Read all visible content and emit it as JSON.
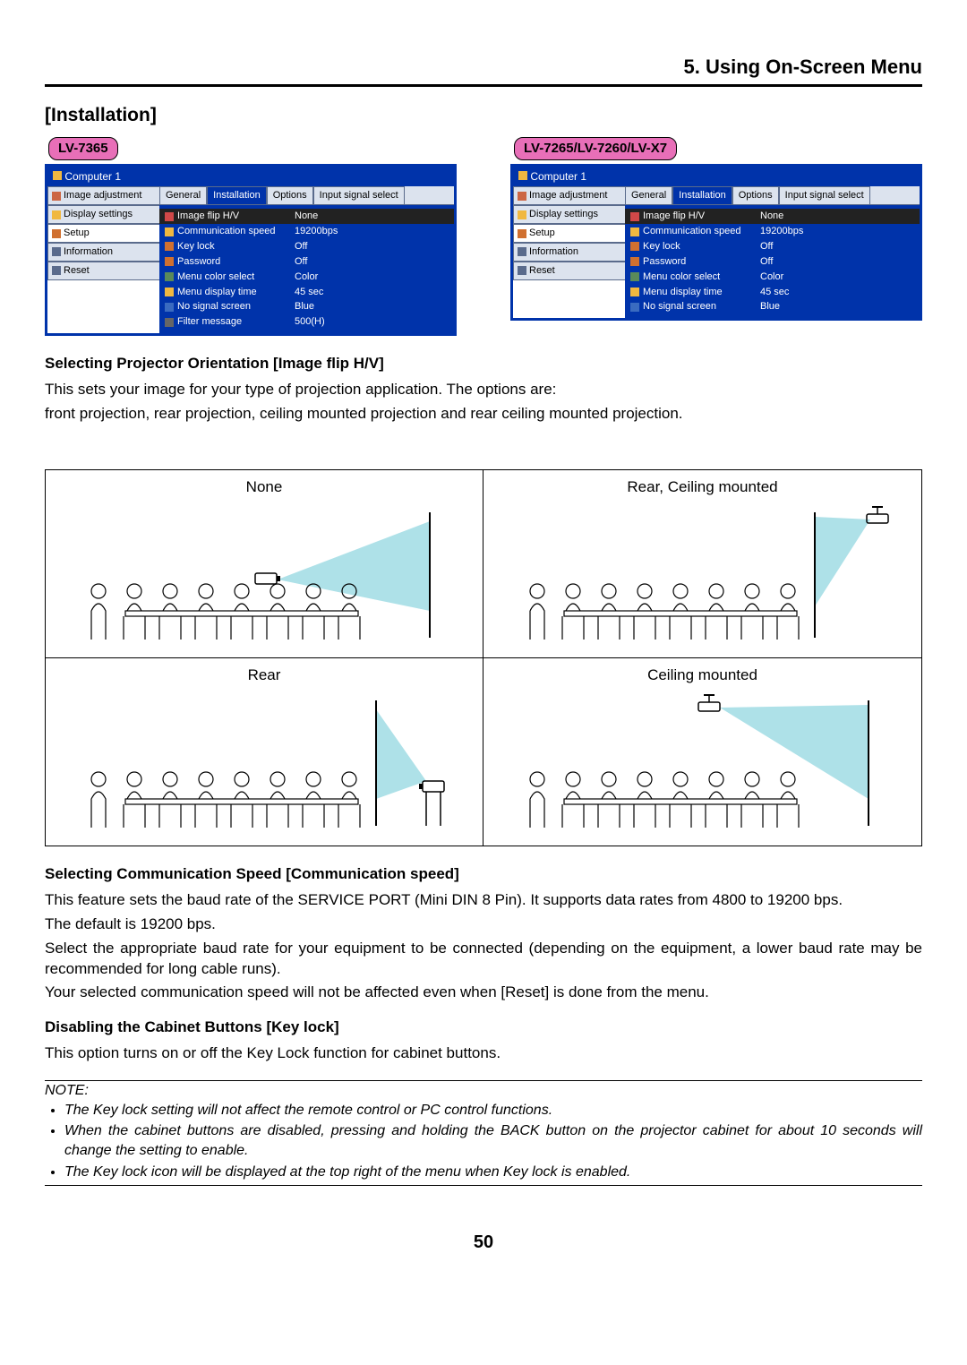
{
  "chapter": "5. Using On-Screen Menu",
  "section": "[Installation]",
  "model_a": {
    "label": "LV-7365",
    "window_title": "Computer 1",
    "side": [
      "Image adjustment",
      "Display settings",
      "Setup",
      "Information",
      "Reset"
    ],
    "tabs": [
      "General",
      "Installation",
      "Options",
      "Input signal select"
    ],
    "active_tab": 1,
    "settings": [
      {
        "label": "Image flip H/V",
        "value": "None",
        "sel": true
      },
      {
        "label": "Communication speed",
        "value": "19200bps",
        "sel": false
      },
      {
        "label": "Key lock",
        "value": "Off",
        "sel": false
      },
      {
        "label": "Password",
        "value": "Off",
        "sel": false
      },
      {
        "label": "Menu color select",
        "value": "Color",
        "sel": false
      },
      {
        "label": "Menu display time",
        "value": "45 sec",
        "sel": false
      },
      {
        "label": "No signal screen",
        "value": "Blue",
        "sel": false
      },
      {
        "label": "Filter message",
        "value": "500(H)",
        "sel": false
      }
    ]
  },
  "model_b": {
    "label": "LV-7265/LV-7260/LV-X7",
    "window_title": "Computer 1",
    "side": [
      "Image adjustment",
      "Display settings",
      "Setup",
      "Information",
      "Reset"
    ],
    "tabs": [
      "General",
      "Installation",
      "Options",
      "Input signal select"
    ],
    "active_tab": 1,
    "settings": [
      {
        "label": "Image flip H/V",
        "value": "None",
        "sel": true
      },
      {
        "label": "Communication speed",
        "value": "19200bps",
        "sel": false
      },
      {
        "label": "Key lock",
        "value": "Off",
        "sel": false
      },
      {
        "label": "Password",
        "value": "Off",
        "sel": false
      },
      {
        "label": "Menu color select",
        "value": "Color",
        "sel": false
      },
      {
        "label": "Menu display time",
        "value": "45 sec",
        "sel": false
      },
      {
        "label": "No signal screen",
        "value": "Blue",
        "sel": false
      }
    ]
  },
  "sub1": {
    "heading": "Selecting Projector Orientation [Image flip H/V]",
    "p1": "This sets your image for your type of projection application. The options are:",
    "p2": "front projection, rear projection, ceiling mounted projection and rear ceiling mounted projection."
  },
  "diagrams": {
    "tl": "None",
    "tr": "Rear, Ceiling mounted",
    "bl": "Rear",
    "br": "Ceiling mounted",
    "beam_fill": "#aee1e8",
    "line_color": "#000000"
  },
  "sub2": {
    "heading": "Selecting Communication Speed [Communication speed]",
    "p1": "This feature sets the baud rate of the SERVICE PORT (Mini DIN 8 Pin). It supports data rates from 4800 to 19200 bps.",
    "p2": "The default is 19200 bps.",
    "p3": "Select the appropriate baud rate for your equipment to be connected (depending on the equipment, a lower baud rate may be recommended for long cable runs).",
    "p4": "Your selected communication speed will not be affected even when [Reset] is done from the menu."
  },
  "sub3": {
    "heading": "Disabling the Cabinet Buttons [Key lock]",
    "p1": "This option turns on or off the Key Lock function for cabinet buttons."
  },
  "note": {
    "label": "NOTE:",
    "items": [
      "The Key lock setting will not affect the remote control or PC control functions.",
      "When the cabinet buttons are disabled, pressing and holding the BACK button on the projector cabinet for about 10 seconds will change the setting to enable.",
      "The Key lock icon will be displayed at the top right of the menu when Key lock is enabled."
    ]
  },
  "page_number": "50",
  "colors": {
    "pink": "#e86fb8",
    "blue_dark": "#0033aa",
    "side_bg": "#dce3ee"
  }
}
